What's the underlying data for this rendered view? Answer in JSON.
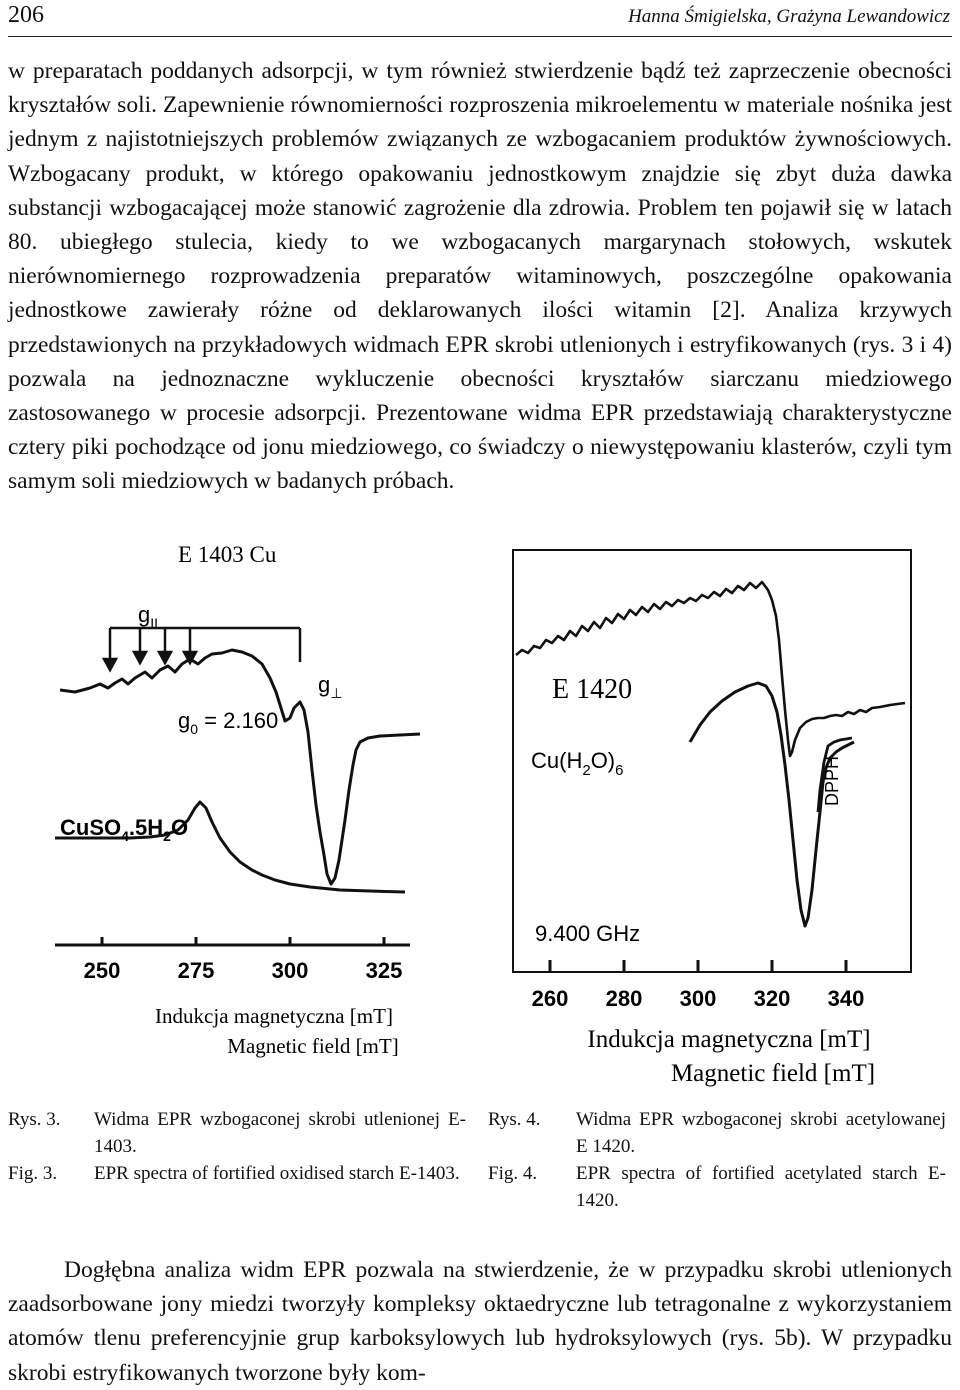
{
  "header": {
    "page_number": "206",
    "running_head": "Hanna Śmigielska, Grażyna Lewandowicz"
  },
  "body_top": "w preparatach poddanych adsorpcji, w tym również stwierdzenie bądź też zaprzeczenie obecności kryształów soli. Zapewnienie równomierności rozproszenia mikroelementu w materiale nośnika jest jednym z najistotniejszych problemów związanych ze wzbogacaniem produktów żywnościowych. Wzbogacany produkt, w którego opakowaniu jednostkowym znajdzie się zbyt duża dawka substancji wzbogacającej może stanowić zagrożenie dla zdrowia. Problem ten pojawił się w latach 80. ubiegłego stulecia, kiedy to we wzbogacanych margarynach stołowych, wskutek nierównomiernego rozprowadzenia preparatów witaminowych, poszczególne opakowania jednostkowe zawierały różne od deklarowanych ilości witamin [2]. Analiza krzywych przedstawionych na przykładowych widmach EPR skrobi utlenionych i estryfikowanych (rys. 3 i 4) pozwala na jednoznaczne wykluczenie obecności kryształów siarczanu miedziowego zastosowanego w procesie adsorpcji. Prezentowane widma EPR przedstawiają charakterystyczne cztery piki pochodzące od jonu miedziowego, co świadczy o niewystępowaniu klasterów, czyli tym samym soli miedziowych w badanych próbach.",
  "figure3": {
    "title": "E 1403 Cu",
    "g_parallel_label": "g",
    "g_parallel_sub": "II",
    "g_perp_label": "g",
    "g_perp_sub": "⊥",
    "g0_label": "g",
    "g0_sub": "0",
    "g0_value": " = 2.160",
    "reference_label": "CuSO",
    "reference_sub1": "4",
    "reference_mid": ".5H",
    "reference_sub2": "2",
    "reference_end": "O",
    "x_ticks": [
      "250",
      "275",
      "300",
      "325"
    ],
    "xlabel_pl": "Indukcja magnetyczna [mT]",
    "xlabel_en": "Magnetic field [mT]"
  },
  "figure4": {
    "title": "E 1420",
    "complex_label": "Cu(H",
    "complex_sub1": "2",
    "complex_mid": "O)",
    "complex_sub2": "6",
    "reference_label": "DPPH",
    "frequency": "9.400 GHz",
    "x_ticks": [
      "260",
      "280",
      "300",
      "320",
      "340"
    ],
    "xlabel_pl": "Indukcja magnetyczna [mT]",
    "xlabel_en": "Magnetic field [mT]"
  },
  "caption3": {
    "rys_label": "Rys. 3.",
    "rys_text": "Widma EPR wzbogaconej skrobi utlenionej E-1403.",
    "fig_label": "Fig. 3.",
    "fig_text": "EPR spectra of fortified oxidised starch E-1403."
  },
  "caption4": {
    "rys_label": "Rys. 4.",
    "rys_text": "Widma EPR wzbogaconej skrobi acetylowanej E 1420.",
    "fig_label": "Fig. 4.",
    "fig_text": "EPR spectra of fortified acetylated starch E-1420."
  },
  "body_bottom": "Dogłębna analiza widm EPR pozwala na stwierdzenie, że w przypadku skrobi utlenionych zaadsorbowane jony miedzi tworzyły kompleksy oktaedryczne lub tetragonalne z wykorzystaniem atomów tlenu preferencyjnie grup karboksylowych lub hydroksylowych (rys. 5b). W przypadku skrobi estryfikowanych tworzone były kom-"
}
